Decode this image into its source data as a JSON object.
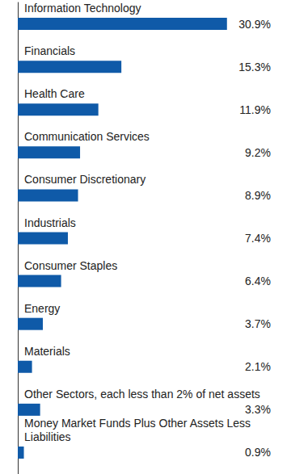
{
  "chart_data": {
    "type": "bar",
    "orientation": "horizontal",
    "categories": [
      "Information Technology",
      "Financials",
      "Health Care",
      "Communication Services",
      "Consumer Discretionary",
      "Industrials",
      "Consumer Staples",
      "Energy",
      "Materials",
      "Other Sectors, each less than 2% of net assets",
      "Money Market Funds Plus Other Assets Less Liabilities"
    ],
    "values": [
      30.9,
      15.3,
      11.9,
      9.2,
      8.9,
      7.4,
      6.4,
      3.7,
      2.1,
      3.3,
      0.9
    ],
    "value_labels": [
      "30.9%",
      "15.3%",
      "11.9%",
      "9.2%",
      "8.9%",
      "7.4%",
      "6.4%",
      "3.7%",
      "2.1%",
      "3.3%",
      "0.9%"
    ],
    "color": "#0f5aa8",
    "xlim": [
      0,
      32
    ],
    "tick_labels": false,
    "grid": false,
    "data_labels": true
  }
}
